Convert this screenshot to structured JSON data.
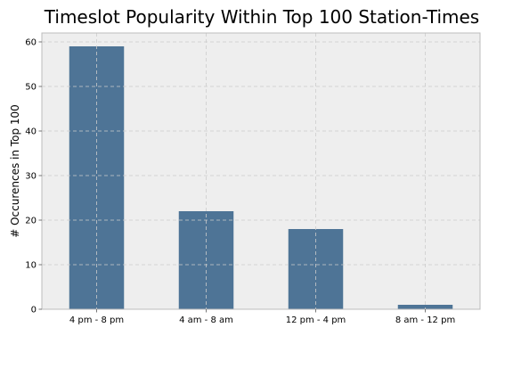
{
  "chart_data": {
    "type": "bar",
    "title": "Timeslot Popularity Within Top 100 Station-Times",
    "xlabel": "",
    "ylabel": "# Occurences in Top 100",
    "categories": [
      "4 pm - 8 pm",
      "4 am - 8 am",
      "12 pm - 4 pm",
      "8 am - 12 pm"
    ],
    "values": [
      59,
      22,
      18,
      1
    ],
    "ylim": [
      0,
      62
    ],
    "yticks": [
      0,
      10,
      20,
      30,
      40,
      50,
      60
    ],
    "grid": true,
    "legend": "none",
    "colors": {
      "bar": "#4e7496",
      "plot_background": "#eeeeee",
      "grid": "#cccccc",
      "axis": "#bcbcbc"
    }
  }
}
